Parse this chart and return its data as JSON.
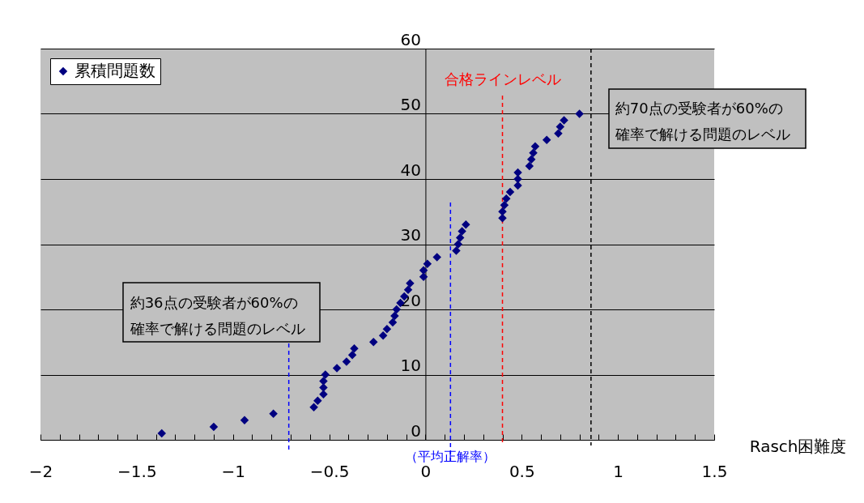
{
  "chart_data": {
    "type": "scatter",
    "xlabel": "Rasch困難度",
    "x": [
      -1.37,
      -1.1,
      -0.94,
      -0.79,
      -0.58,
      -0.56,
      -0.53,
      -0.53,
      -0.53,
      -0.52,
      -0.46,
      -0.41,
      -0.38,
      -0.37,
      -0.27,
      -0.22,
      -0.2,
      -0.17,
      -0.16,
      -0.15,
      -0.13,
      -0.11,
      -0.09,
      -0.08,
      -0.01,
      -0.01,
      0.01,
      0.06,
      0.16,
      0.17,
      0.18,
      0.19,
      0.21,
      0.4,
      0.4,
      0.41,
      0.42,
      0.44,
      0.48,
      0.48,
      0.48,
      0.54,
      0.55,
      0.56,
      0.57,
      0.63,
      0.69,
      0.7,
      0.72,
      0.8
    ],
    "series": [
      {
        "name": "累積問題数",
        "color": "#000080",
        "values": [
          1,
          2,
          3,
          4,
          5,
          6,
          7,
          8,
          9,
          10,
          11,
          12,
          13,
          14,
          15,
          16,
          17,
          18,
          19,
          20,
          21,
          22,
          23,
          24,
          25,
          26,
          27,
          28,
          29,
          30,
          31,
          32,
          33,
          34,
          35,
          36,
          37,
          38,
          39,
          40,
          41,
          42,
          43,
          44,
          45,
          46,
          47,
          48,
          49,
          50
        ]
      }
    ],
    "marker": "diamond",
    "grid": "y",
    "legend": "top left",
    "xlim": [
      -2,
      1.5
    ],
    "ylim": [
      0,
      60
    ],
    "xticks": [
      -2,
      {
        "value": -1.9,
        "label": null
      },
      {
        "value": -1.8,
        "label": null
      },
      {
        "value": -1.7,
        "label": null
      },
      {
        "value": -1.6,
        "label": null
      },
      -1.5,
      {
        "value": -1.4,
        "label": null
      },
      {
        "value": -1.3,
        "label": null
      },
      {
        "value": -1.2,
        "label": null
      },
      {
        "value": -1.1,
        "label": null
      },
      -1,
      {
        "value": -0.9,
        "label": null
      },
      {
        "value": -0.8,
        "label": null
      },
      {
        "value": -0.7,
        "label": null
      },
      {
        "value": -0.6,
        "label": null
      },
      -0.5,
      {
        "value": -0.4,
        "label": null
      },
      {
        "value": -0.3,
        "label": null
      },
      {
        "value": -0.2,
        "label": null
      },
      {
        "value": -0.1,
        "label": null
      },
      0,
      {
        "value": 0.1,
        "label": null
      },
      {
        "value": 0.2,
        "label": null
      },
      {
        "value": 0.3,
        "label": null
      },
      {
        "value": 0.4,
        "label": null
      },
      0.5,
      {
        "value": 0.6,
        "label": null
      },
      {
        "value": 0.7,
        "label": null
      },
      {
        "value": 0.8,
        "label": null
      },
      {
        "value": 0.9,
        "label": null
      },
      1,
      {
        "value": 1.1,
        "label": null
      },
      {
        "value": 1.2,
        "label": null
      },
      {
        "value": 1.3,
        "label": null
      },
      {
        "value": 1.4,
        "label": null
      },
      1.5
    ],
    "yticks": [
      0,
      10,
      20,
      30,
      40,
      50,
      60
    ],
    "ref_lines": [
      {
        "axis": "x",
        "value": -0.71,
        "label": "約36点の受験者が60%の確率で解ける問題のレベル",
        "color": "#0000ff",
        "line_style": "dashed"
      },
      {
        "axis": "x",
        "value": 0.13,
        "label": "（平均正解率）",
        "color": "#0000ff",
        "line_style": "dashed"
      },
      {
        "axis": "x",
        "value": 0.4,
        "label": "合格ラインレベル",
        "color": "#ff0000",
        "line_style": "dashed"
      },
      {
        "axis": "x",
        "value": 0.86,
        "label": "約70点の受験者が60%の確率で解ける問題のレベル",
        "color": "#000000",
        "line_style": "dashed"
      }
    ]
  }
}
